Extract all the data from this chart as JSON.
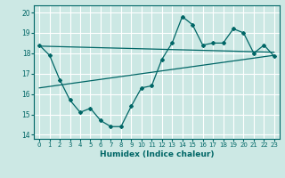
{
  "xlabel": "Humidex (Indice chaleur)",
  "bg_color": "#cce8e4",
  "grid_color": "#ffffff",
  "line_color": "#006666",
  "xlim": [
    -0.5,
    23.5
  ],
  "ylim": [
    13.8,
    20.35
  ],
  "yticks": [
    14,
    15,
    16,
    17,
    18,
    19,
    20
  ],
  "xticks": [
    0,
    1,
    2,
    3,
    4,
    5,
    6,
    7,
    8,
    9,
    10,
    11,
    12,
    13,
    14,
    15,
    16,
    17,
    18,
    19,
    20,
    21,
    22,
    23
  ],
  "line1_x": [
    0,
    1,
    2,
    3,
    4,
    5,
    6,
    7,
    8,
    9,
    10,
    11,
    12,
    13,
    14,
    15,
    16,
    17,
    18,
    19,
    20,
    21,
    22,
    23
  ],
  "line1_y": [
    18.4,
    17.9,
    16.7,
    15.7,
    15.1,
    15.3,
    14.7,
    14.4,
    14.4,
    15.4,
    16.3,
    16.4,
    17.7,
    18.5,
    19.8,
    19.4,
    18.4,
    18.5,
    18.5,
    19.2,
    19.0,
    18.0,
    18.4,
    17.85
  ],
  "line2_x": [
    0,
    23
  ],
  "line2_y": [
    16.3,
    17.9
  ],
  "line3_x": [
    0,
    23
  ],
  "line3_y": [
    18.35,
    18.05
  ]
}
